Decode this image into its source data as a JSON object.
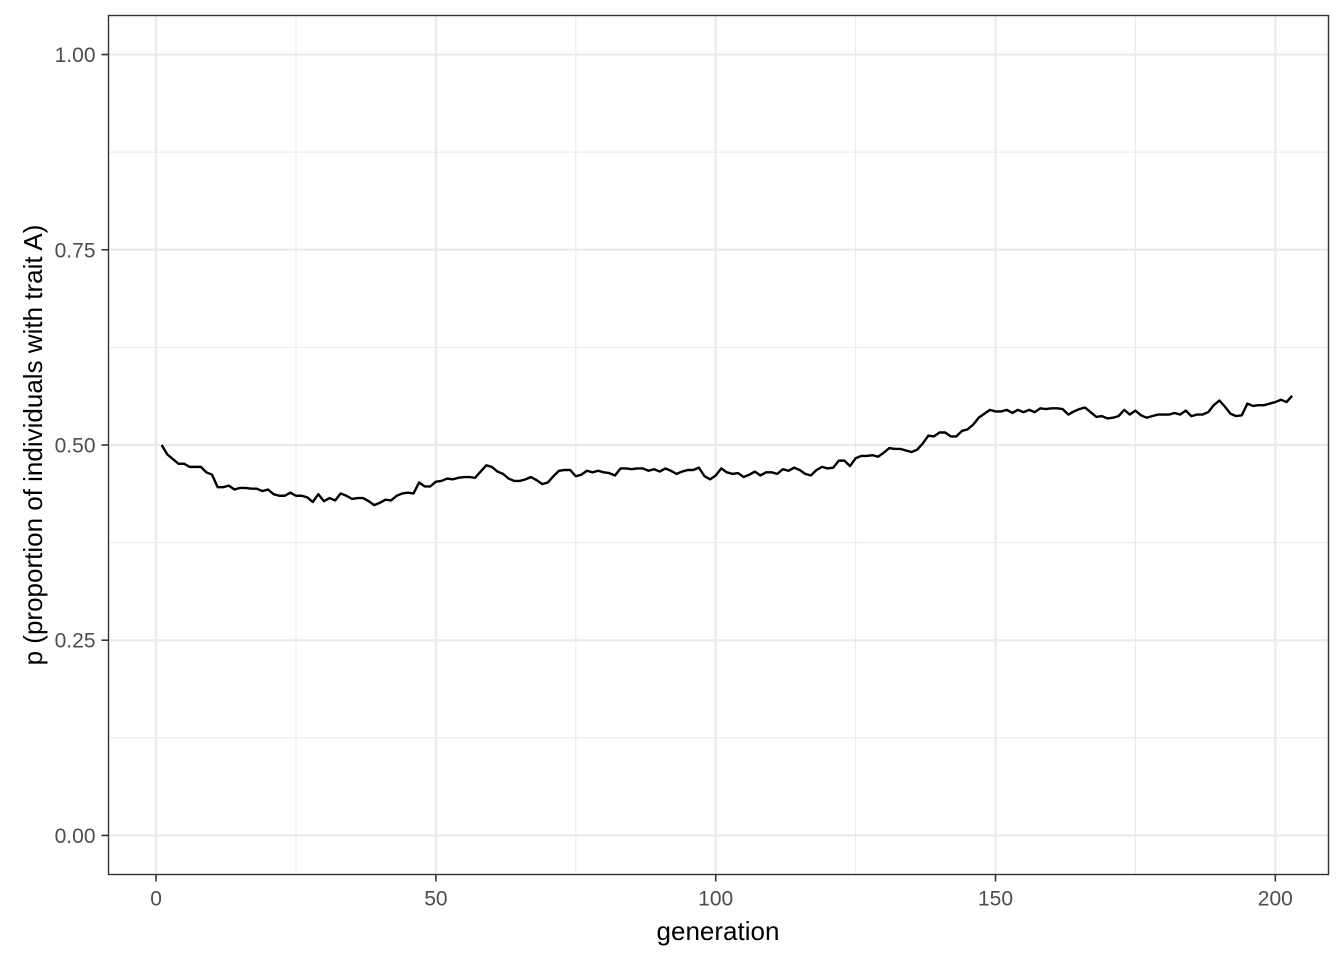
{
  "chart_data": {
    "type": "line",
    "title": "",
    "xlabel": "generation",
    "ylabel": "p (proportion of individuals with trait A)",
    "xlim": [
      -8.5,
      209.5
    ],
    "ylim": [
      -0.05,
      1.05
    ],
    "x_ticks": [
      0,
      50,
      100,
      150,
      200
    ],
    "x_tick_labels": [
      "0",
      "50",
      "100",
      "150",
      "200"
    ],
    "y_ticks": [
      0,
      0.25,
      0.5,
      0.75,
      1.0
    ],
    "y_tick_labels": [
      "0.00",
      "0.25",
      "0.50",
      "0.75",
      "1.00"
    ],
    "x_minor": [
      25,
      75,
      125,
      175
    ],
    "y_minor": [
      0.125,
      0.375,
      0.625,
      0.875
    ],
    "grid": true,
    "theme": "bw",
    "series": [
      {
        "color": "#000000",
        "x_start": 1,
        "values": [
          0.5,
          0.488,
          0.482,
          0.476,
          0.476,
          0.472,
          0.472,
          0.472,
          0.465,
          0.462,
          0.446,
          0.446,
          0.448,
          0.443,
          0.445,
          0.445,
          0.444,
          0.444,
          0.441,
          0.443,
          0.437,
          0.435,
          0.435,
          0.439,
          0.435,
          0.435,
          0.433,
          0.427,
          0.437,
          0.428,
          0.432,
          0.429,
          0.438,
          0.435,
          0.431,
          0.432,
          0.432,
          0.428,
          0.423,
          0.426,
          0.43,
          0.429,
          0.435,
          0.438,
          0.439,
          0.438,
          0.452,
          0.447,
          0.447,
          0.453,
          0.454,
          0.457,
          0.456,
          0.458,
          0.459,
          0.459,
          0.458,
          0.466,
          0.474,
          0.472,
          0.466,
          0.463,
          0.457,
          0.454,
          0.454,
          0.456,
          0.459,
          0.455,
          0.45,
          0.452,
          0.46,
          0.467,
          0.468,
          0.468,
          0.46,
          0.462,
          0.467,
          0.465,
          0.467,
          0.465,
          0.464,
          0.461,
          0.47,
          0.47,
          0.469,
          0.47,
          0.47,
          0.467,
          0.469,
          0.466,
          0.47,
          0.467,
          0.463,
          0.466,
          0.468,
          0.468,
          0.471,
          0.46,
          0.456,
          0.461,
          0.47,
          0.465,
          0.463,
          0.464,
          0.459,
          0.462,
          0.466,
          0.461,
          0.465,
          0.465,
          0.463,
          0.469,
          0.467,
          0.471,
          0.468,
          0.463,
          0.461,
          0.468,
          0.472,
          0.47,
          0.471,
          0.48,
          0.48,
          0.473,
          0.483,
          0.486,
          0.486,
          0.487,
          0.485,
          0.49,
          0.496,
          0.495,
          0.495,
          0.493,
          0.491,
          0.494,
          0.502,
          0.512,
          0.511,
          0.516,
          0.516,
          0.511,
          0.511,
          0.518,
          0.52,
          0.526,
          0.535,
          0.54,
          0.545,
          0.543,
          0.543,
          0.545,
          0.541,
          0.545,
          0.542,
          0.545,
          0.542,
          0.547,
          0.546,
          0.547,
          0.547,
          0.546,
          0.539,
          0.543,
          0.546,
          0.548,
          0.542,
          0.536,
          0.537,
          0.534,
          0.535,
          0.537,
          0.545,
          0.539,
          0.544,
          0.538,
          0.535,
          0.537,
          0.539,
          0.539,
          0.539,
          0.541,
          0.539,
          0.544,
          0.537,
          0.539,
          0.539,
          0.542,
          0.551,
          0.557,
          0.549,
          0.54,
          0.537,
          0.538,
          0.553,
          0.55,
          0.551,
          0.551,
          0.553,
          0.555,
          0.558,
          0.555,
          0.563
        ]
      }
    ]
  }
}
